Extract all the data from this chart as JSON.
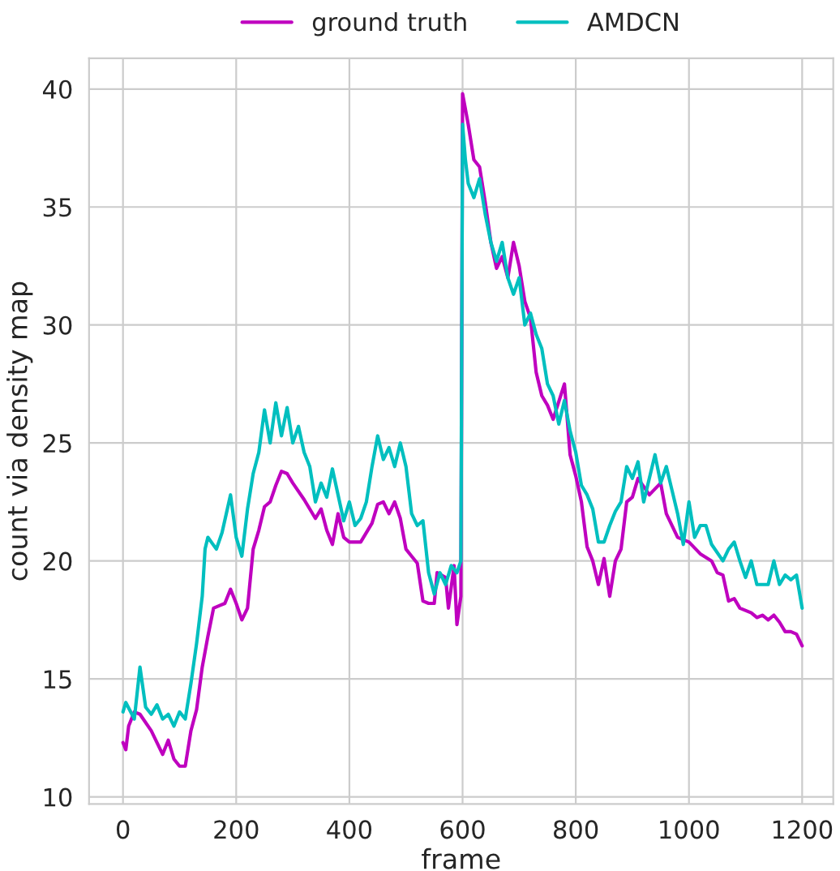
{
  "chart_data": {
    "type": "line",
    "xlabel": "frame",
    "ylabel": "count via density map",
    "xlim": [
      -60,
      1255
    ],
    "ylim": [
      9.7,
      41.3
    ],
    "xticks": [
      0,
      200,
      400,
      600,
      800,
      1000,
      1200
    ],
    "yticks": [
      10,
      15,
      20,
      25,
      30,
      35,
      40
    ],
    "grid": true,
    "legend": "top",
    "line_style": "solid",
    "marker": "none",
    "series": [
      {
        "name": "ground truth",
        "color": "#bf00bf",
        "x": [
          0,
          5,
          10,
          20,
          30,
          50,
          60,
          70,
          80,
          90,
          100,
          110,
          120,
          130,
          140,
          150,
          160,
          170,
          180,
          190,
          200,
          210,
          220,
          230,
          240,
          250,
          260,
          270,
          280,
          290,
          300,
          320,
          340,
          350,
          360,
          370,
          380,
          390,
          400,
          420,
          440,
          450,
          460,
          470,
          480,
          490,
          500,
          520,
          530,
          540,
          550,
          555,
          570,
          575,
          585,
          590,
          597,
          600,
          610,
          620,
          630,
          640,
          650,
          660,
          670,
          680,
          690,
          700,
          710,
          720,
          730,
          740,
          750,
          760,
          780,
          790,
          800,
          810,
          820,
          830,
          840,
          850,
          860,
          870,
          880,
          890,
          900,
          910,
          930,
          950,
          960,
          980,
          1000,
          1020,
          1040,
          1050,
          1060,
          1070,
          1080,
          1090,
          1110,
          1120,
          1130,
          1140,
          1150,
          1160,
          1170,
          1180,
          1190,
          1200
        ],
        "values": [
          12.3,
          12.0,
          13.0,
          13.6,
          13.5,
          12.8,
          12.3,
          11.8,
          12.4,
          11.6,
          11.3,
          11.3,
          12.8,
          13.7,
          15.5,
          16.8,
          18.0,
          18.1,
          18.2,
          18.8,
          18.2,
          17.5,
          18.0,
          20.5,
          21.3,
          22.3,
          22.5,
          23.2,
          23.8,
          23.7,
          23.3,
          22.6,
          21.8,
          22.2,
          21.3,
          20.7,
          22.0,
          21.0,
          20.8,
          20.8,
          21.6,
          22.4,
          22.5,
          22.0,
          22.5,
          21.8,
          20.5,
          19.9,
          18.3,
          18.2,
          18.2,
          19.5,
          19.3,
          18.0,
          19.8,
          17.3,
          18.5,
          39.8,
          38.5,
          37.0,
          36.7,
          35.2,
          33.5,
          32.4,
          32.9,
          32.0,
          33.5,
          32.5,
          31.0,
          30.3,
          28.0,
          27.0,
          26.6,
          26.0,
          27.5,
          24.5,
          23.6,
          22.5,
          20.6,
          20.0,
          19.0,
          20.1,
          18.5,
          20.0,
          20.5,
          22.5,
          22.7,
          23.5,
          22.8,
          23.3,
          22.0,
          21.0,
          20.8,
          20.3,
          20.0,
          19.5,
          19.4,
          18.3,
          18.4,
          18.0,
          17.8,
          17.6,
          17.7,
          17.5,
          17.7,
          17.4,
          17.0,
          17.0,
          16.9,
          16.4
        ]
      },
      {
        "name": "AMDCN",
        "color": "#00bfbf",
        "x": [
          0,
          5,
          20,
          30,
          40,
          50,
          60,
          70,
          80,
          90,
          100,
          110,
          120,
          130,
          140,
          145,
          150,
          165,
          175,
          190,
          200,
          210,
          220,
          230,
          240,
          250,
          260,
          270,
          280,
          290,
          300,
          310,
          320,
          330,
          340,
          350,
          360,
          370,
          380,
          390,
          400,
          410,
          420,
          430,
          440,
          450,
          460,
          470,
          480,
          490,
          500,
          510,
          520,
          530,
          540,
          550,
          560,
          570,
          580,
          590,
          597,
          600,
          605,
          610,
          620,
          630,
          640,
          650,
          660,
          670,
          680,
          690,
          700,
          710,
          720,
          730,
          740,
          750,
          760,
          770,
          780,
          790,
          800,
          810,
          820,
          830,
          840,
          850,
          860,
          870,
          880,
          890,
          900,
          910,
          920,
          930,
          940,
          950,
          960,
          970,
          980,
          990,
          1000,
          1010,
          1020,
          1030,
          1040,
          1060,
          1070,
          1080,
          1090,
          1100,
          1110,
          1120,
          1140,
          1150,
          1160,
          1170,
          1180,
          1190,
          1200
        ],
        "values": [
          13.6,
          14.0,
          13.3,
          15.5,
          13.8,
          13.5,
          13.9,
          13.3,
          13.5,
          13.0,
          13.6,
          13.3,
          14.8,
          16.5,
          18.5,
          20.5,
          21.0,
          20.5,
          21.2,
          22.8,
          21.0,
          20.2,
          22.2,
          23.7,
          24.6,
          26.4,
          25.0,
          26.7,
          25.3,
          26.5,
          25.0,
          25.7,
          24.6,
          24.0,
          22.5,
          23.3,
          22.7,
          23.9,
          22.8,
          21.7,
          22.5,
          21.5,
          21.8,
          22.5,
          24.0,
          25.3,
          24.3,
          24.8,
          24.0,
          25.0,
          24.0,
          22.0,
          21.5,
          21.7,
          19.5,
          18.6,
          19.5,
          19.0,
          19.8,
          19.5,
          20.0,
          38.5,
          37.0,
          36.0,
          35.4,
          36.2,
          34.7,
          33.5,
          32.7,
          33.5,
          32.0,
          31.3,
          32.0,
          30.0,
          30.5,
          29.6,
          29.0,
          27.5,
          27.0,
          25.8,
          26.8,
          25.5,
          24.6,
          23.2,
          22.8,
          22.2,
          20.8,
          20.8,
          21.5,
          22.1,
          22.5,
          24.0,
          23.5,
          24.2,
          22.5,
          23.5,
          24.5,
          23.3,
          24.0,
          23.0,
          22.0,
          20.7,
          22.5,
          21.0,
          21.5,
          21.5,
          20.7,
          20.0,
          20.5,
          20.8,
          20.0,
          19.3,
          20.0,
          19.0,
          19.0,
          20.0,
          19.0,
          19.4,
          19.2,
          19.4,
          18.0
        ]
      }
    ]
  }
}
